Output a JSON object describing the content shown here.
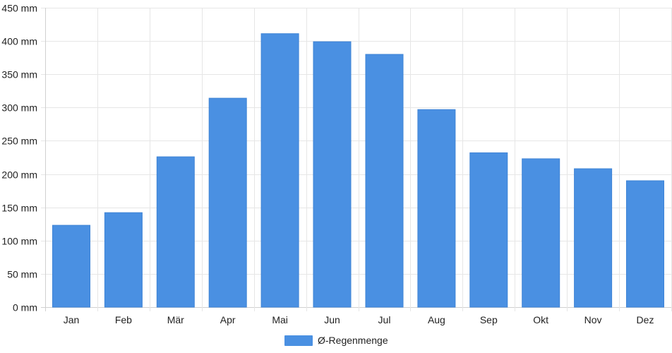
{
  "chart_data": {
    "type": "bar",
    "categories": [
      "Jan",
      "Feb",
      "Mär",
      "Apr",
      "Mai",
      "Jun",
      "Jul",
      "Aug",
      "Sep",
      "Okt",
      "Nov",
      "Dez"
    ],
    "series": [
      {
        "name": "Ø-Regenmenge",
        "values": [
          123,
          142,
          226,
          314,
          411,
          399,
          380,
          297,
          232,
          223,
          208,
          190
        ],
        "color": "#4a90e2"
      }
    ],
    "ylim": [
      0,
      450
    ],
    "yticks": [
      "0 mm",
      "50 mm",
      "100 mm",
      "150 mm",
      "200 mm",
      "250 mm",
      "300 mm",
      "350 mm",
      "400 mm",
      "450 mm"
    ],
    "grid": true,
    "legend_position": "bottom-center"
  }
}
